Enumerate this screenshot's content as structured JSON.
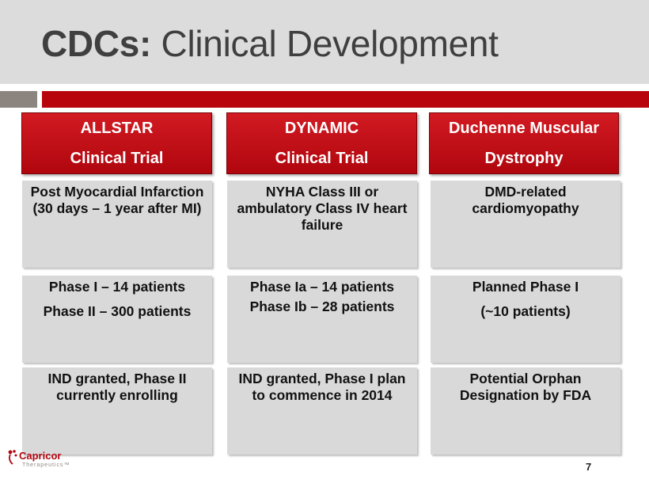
{
  "title": {
    "bold": "CDCs:",
    "rest": "Clinical Development"
  },
  "columns": [
    {
      "header": [
        "ALLSTAR",
        "Clinical Trial"
      ],
      "indication": "Post Myocardial Infarction (30 days – 1 year after MI)",
      "phases": [
        "Phase I – 14 patients",
        "Phase II – 300 patients"
      ],
      "status": "IND granted, Phase II currently enrolling"
    },
    {
      "header": [
        "DYNAMIC",
        "Clinical Trial"
      ],
      "indication": "NYHA Class III or ambulatory Class IV heart failure",
      "phases": [
        "Phase Ia – 14 patients",
        "Phase Ib – 28 patients"
      ],
      "status": "IND granted, Phase I plan to commence in 2014"
    },
    {
      "header": [
        "Duchenne Muscular",
        "Dystrophy"
      ],
      "indication": "DMD-related cardiomyopathy",
      "phases": [
        "Planned Phase I",
        "(~10 patients)"
      ],
      "status": "Potential Orphan Designation by FDA"
    }
  ],
  "logo": {
    "name": "Capricor",
    "sub": "Therapeutics™"
  },
  "page_number": "7",
  "colors": {
    "accent_red": "#b8040d",
    "accent_gray": "#8c857f",
    "band": "#dcdcdc",
    "cell": "#d9d9d9"
  }
}
